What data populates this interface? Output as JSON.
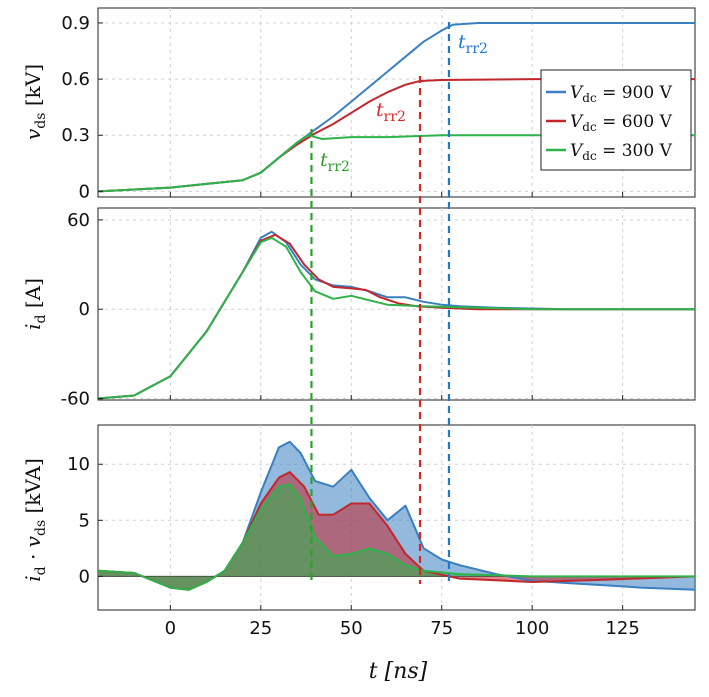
{
  "chart_data": [
    {
      "type": "line",
      "panel": "top",
      "ylabel": "v_ds [kV]",
      "ylabel_parts": {
        "sym": "v",
        "sub": "ds",
        "unit": "[kV]"
      },
      "xlim": [
        -20,
        145
      ],
      "ylim": [
        -0.03,
        0.98
      ],
      "yticks": [
        0,
        0.3,
        0.6,
        0.9
      ],
      "ytick_labels": [
        "0",
        "0.3",
        "0.6",
        "0.9"
      ],
      "grid": true,
      "legend_position": "right",
      "series": [
        {
          "name": "V_dc = 900 V",
          "color": "#3a7fc1",
          "x": [
            -20,
            -10,
            0,
            10,
            20,
            25,
            30,
            35,
            40,
            45,
            50,
            55,
            60,
            65,
            70,
            75,
            78,
            85,
            100,
            145
          ],
          "y": [
            0,
            0.01,
            0.02,
            0.04,
            0.06,
            0.1,
            0.18,
            0.26,
            0.33,
            0.4,
            0.48,
            0.56,
            0.64,
            0.72,
            0.8,
            0.86,
            0.89,
            0.9,
            0.9,
            0.9
          ]
        },
        {
          "name": "V_dc = 600 V",
          "color": "#c1272d",
          "x": [
            -20,
            -10,
            0,
            10,
            20,
            25,
            30,
            35,
            40,
            45,
            50,
            55,
            60,
            65,
            69,
            75,
            100,
            145
          ],
          "y": [
            0,
            0.01,
            0.02,
            0.04,
            0.06,
            0.1,
            0.18,
            0.25,
            0.31,
            0.36,
            0.42,
            0.48,
            0.53,
            0.57,
            0.59,
            0.595,
            0.6,
            0.6
          ]
        },
        {
          "name": "V_dc = 300 V",
          "color": "#2db34a",
          "x": [
            -20,
            -10,
            0,
            10,
            20,
            25,
            30,
            35,
            38,
            42,
            50,
            60,
            75,
            100,
            145
          ],
          "y": [
            0,
            0.01,
            0.02,
            0.04,
            0.06,
            0.1,
            0.18,
            0.26,
            0.3,
            0.28,
            0.29,
            0.29,
            0.3,
            0.3,
            0.3
          ]
        }
      ],
      "markers": [
        {
          "label": "t_rr2",
          "x": 77,
          "color": "#1f77d4"
        },
        {
          "label": "t_rr2",
          "x": 69,
          "color": "#d62728"
        },
        {
          "label": "t_rr2",
          "x": 39,
          "color": "#2ca02c"
        }
      ]
    },
    {
      "type": "line",
      "panel": "middle",
      "ylabel": "i_d [A]",
      "ylabel_parts": {
        "sym": "i",
        "sub": "d",
        "unit": "[A]"
      },
      "xlim": [
        -20,
        145
      ],
      "ylim": [
        -61,
        68
      ],
      "yticks": [
        -60,
        0,
        60
      ],
      "ytick_labels": [
        "-60",
        "0",
        "60"
      ],
      "grid": true,
      "series": [
        {
          "name": "V_dc = 900 V",
          "color": "#3a7fc1",
          "x": [
            -20,
            -10,
            0,
            10,
            20,
            25,
            28,
            32,
            36,
            40,
            45,
            50,
            55,
            60,
            65,
            70,
            75,
            80,
            90,
            110,
            145
          ],
          "y": [
            -60,
            -58,
            -45,
            -15,
            25,
            48,
            52,
            45,
            30,
            20,
            16,
            15,
            12,
            8,
            8,
            5,
            3,
            2,
            1,
            0,
            0
          ]
        },
        {
          "name": "V_dc = 600 V",
          "color": "#c1272d",
          "x": [
            -20,
            -10,
            0,
            10,
            20,
            25,
            29,
            33,
            37,
            41,
            45,
            50,
            54,
            58,
            63,
            68,
            75,
            85,
            100,
            145
          ],
          "y": [
            -60,
            -58,
            -45,
            -15,
            25,
            46,
            50,
            44,
            30,
            20,
            15,
            14,
            13,
            8,
            4,
            2,
            1,
            0,
            0,
            0
          ]
        },
        {
          "name": "V_dc = 300 V",
          "color": "#2db34a",
          "x": [
            -20,
            -10,
            0,
            10,
            20,
            25,
            28,
            32,
            36,
            40,
            45,
            50,
            55,
            60,
            70,
            85,
            100,
            145
          ],
          "y": [
            -60,
            -58,
            -45,
            -15,
            25,
            45,
            48,
            42,
            25,
            12,
            7,
            9,
            6,
            3,
            2,
            1,
            0,
            0
          ]
        }
      ]
    },
    {
      "type": "area",
      "panel": "bottom",
      "xlabel": "t [ns]",
      "xlabel_parts": {
        "sym": "t",
        "unit": "[ns]"
      },
      "ylabel": "i_d · v_ds [kVA]",
      "ylabel_parts": {
        "sym1": "i",
        "sub1": "d",
        "dot": " · ",
        "sym2": "v",
        "sub2": "ds",
        "unit": "[kVA]"
      },
      "xlim": [
        -20,
        145
      ],
      "ylim": [
        -3,
        13.5
      ],
      "xticks": [
        0,
        25,
        50,
        75,
        100,
        125
      ],
      "xtick_labels": [
        "0",
        "25",
        "50",
        "75",
        "100",
        "125"
      ],
      "yticks": [
        0,
        5,
        10
      ],
      "ytick_labels": [
        "0",
        "5",
        "10"
      ],
      "grid": true,
      "series": [
        {
          "name": "V_dc = 900 V",
          "color": "#3a7fc1",
          "x": [
            -20,
            -10,
            0,
            5,
            10,
            15,
            20,
            25,
            30,
            33,
            36,
            40,
            45,
            50,
            55,
            60,
            65,
            70,
            75,
            80,
            90,
            100,
            110,
            120,
            130,
            145
          ],
          "y": [
            0.5,
            0.3,
            -1,
            -1.2,
            -0.5,
            0.5,
            3,
            7.5,
            11.5,
            12,
            11,
            8.5,
            8,
            9.5,
            7,
            5,
            6.3,
            2.5,
            1.5,
            1,
            0.2,
            -0.4,
            -0.6,
            -0.8,
            -1,
            -1.2
          ]
        },
        {
          "name": "V_dc = 600 V",
          "color": "#c1272d",
          "x": [
            -20,
            -10,
            0,
            5,
            10,
            15,
            20,
            25,
            30,
            33,
            37,
            41,
            45,
            50,
            55,
            60,
            65,
            70,
            80,
            100,
            120,
            145
          ],
          "y": [
            0.5,
            0.3,
            -1,
            -1.2,
            -0.5,
            0.5,
            3,
            6.5,
            8.8,
            9.3,
            8,
            5.5,
            5.5,
            6.5,
            6.5,
            4.5,
            2,
            0.5,
            -0.2,
            -0.5,
            -0.3,
            0
          ]
        },
        {
          "name": "V_dc = 300 V",
          "color": "#2db34a",
          "x": [
            -20,
            -10,
            0,
            5,
            10,
            15,
            20,
            25,
            30,
            33,
            36,
            40,
            45,
            50,
            55,
            60,
            65,
            70,
            80,
            100,
            120,
            145
          ],
          "y": [
            0.5,
            0.3,
            -1,
            -1.2,
            -0.5,
            0.5,
            3,
            6,
            8,
            8.2,
            7,
            3.5,
            1.8,
            2,
            2.5,
            2,
            1,
            0.5,
            0.2,
            0,
            0,
            0
          ]
        }
      ]
    }
  ],
  "legend": {
    "items": [
      {
        "sym": "V",
        "sub": "dc",
        "text": " = 900 V",
        "color": "#3a7fc1"
      },
      {
        "sym": "V",
        "sub": "dc",
        "text": " = 600 V",
        "color": "#c1272d"
      },
      {
        "sym": "V",
        "sub": "dc",
        "text": " = 300 V",
        "color": "#2db34a"
      }
    ]
  },
  "annotations": [
    {
      "sym": "t",
      "sub": "rr2",
      "color": "#1f77d4"
    },
    {
      "sym": "t",
      "sub": "rr2",
      "color": "#d62728"
    },
    {
      "sym": "t",
      "sub": "rr2",
      "color": "#2ca02c"
    }
  ]
}
